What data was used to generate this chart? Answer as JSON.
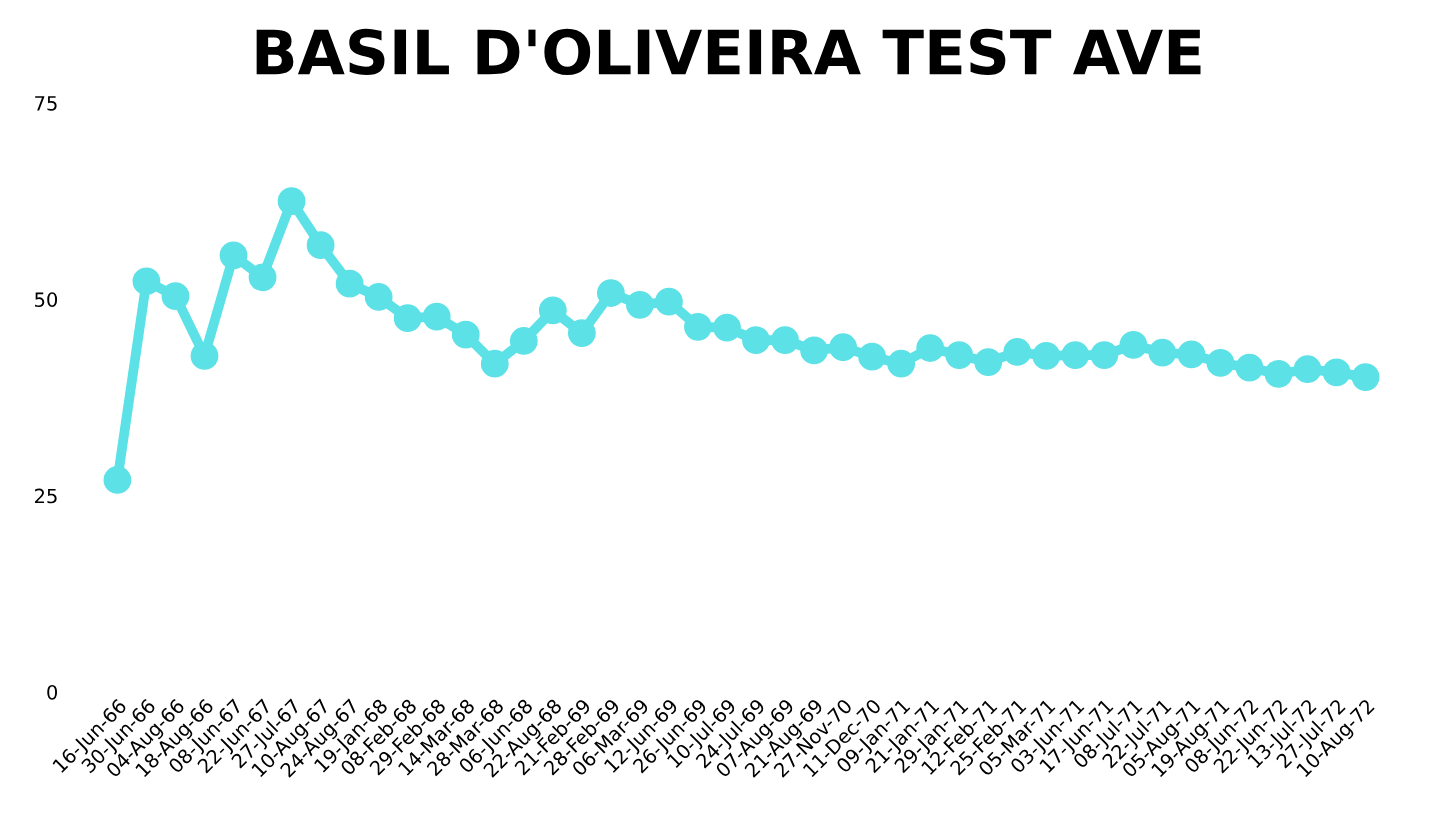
{
  "chart_data": {
    "type": "line",
    "title": "BASIL D'OLIVEIRA TEST AVE",
    "categories": [
      "16-Jun-66",
      "30-Jun-66",
      "04-Aug-66",
      "18-Aug-66",
      "08-Jun-67",
      "22-Jun-67",
      "27-Jul-67",
      "10-Aug-67",
      "24-Aug-67",
      "19-Jan-68",
      "08-Feb-68",
      "29-Feb-68",
      "14-Mar-68",
      "28-Mar-68",
      "06-Jun-68",
      "22-Aug-68",
      "21-Feb-69",
      "28-Feb-69",
      "06-Mar-69",
      "12-Jun-69",
      "26-Jun-69",
      "10-Jul-69",
      "24-Jul-69",
      "07-Aug-69",
      "21-Aug-69",
      "27-Nov-70",
      "11-Dec-70",
      "09-Jan-71",
      "21-Jan-71",
      "29-Jan-71",
      "12-Feb-71",
      "25-Feb-71",
      "05-Mar-71",
      "03-Jun-71",
      "17-Jun-71",
      "08-Jul-71",
      "22-Jul-71",
      "05-Aug-71",
      "19-Aug-71",
      "08-Jun-72",
      "22-Jun-72",
      "13-Jul-72",
      "27-Jul-72",
      "10-Aug-72"
    ],
    "series": [
      {
        "color": "#5ce1e6",
        "values": [
          27.0,
          52.3,
          50.4,
          42.8,
          55.6,
          52.8,
          62.5,
          56.9,
          52.0,
          50.3,
          47.6,
          47.8,
          45.5,
          41.8,
          44.7,
          48.6,
          45.7,
          50.8,
          49.3,
          49.7,
          46.5,
          46.4,
          44.8,
          44.8,
          43.5,
          43.9,
          42.7,
          41.8,
          43.8,
          42.9,
          42.0,
          43.3,
          42.8,
          42.9,
          42.9,
          44.2,
          43.2,
          43.0,
          41.9,
          41.3,
          40.5,
          41.1,
          40.7,
          40.1
        ]
      }
    ],
    "ylim": [
      0,
      75
    ],
    "yticks": [
      0,
      25,
      50,
      75
    ],
    "grid": false,
    "legend": false,
    "marker": "circle",
    "line_style": "solid"
  }
}
